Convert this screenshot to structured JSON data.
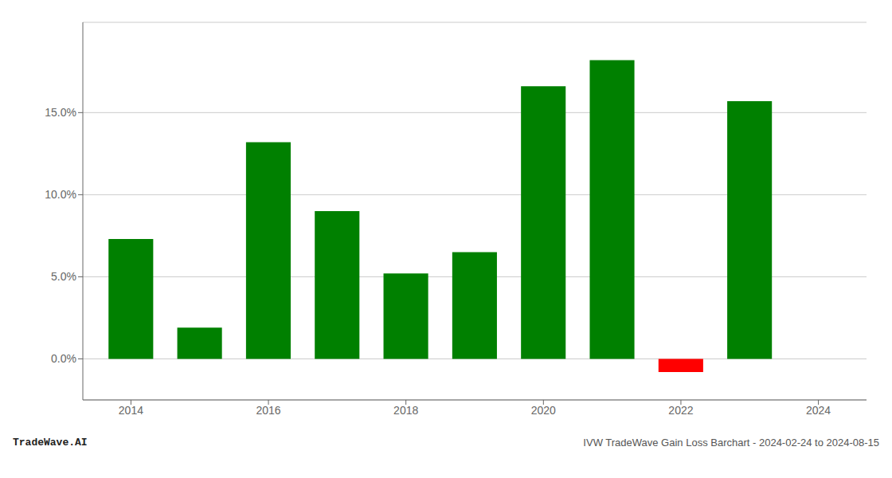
{
  "chart_data": {
    "type": "bar",
    "x": [
      2014,
      2015,
      2016,
      2017,
      2018,
      2019,
      2020,
      2021,
      2022,
      2023
    ],
    "values": [
      0.073,
      0.019,
      0.132,
      0.09,
      0.052,
      0.065,
      0.166,
      0.182,
      -0.008,
      0.157
    ],
    "colors": [
      "#008000",
      "#008000",
      "#008000",
      "#008000",
      "#008000",
      "#008000",
      "#008000",
      "#008000",
      "#ff0000",
      "#008000"
    ],
    "xlim": [
      2013.3,
      2024.7
    ],
    "xticks": [
      2014,
      2016,
      2018,
      2020,
      2022,
      2024
    ],
    "ylim": [
      -0.025,
      0.205
    ],
    "yticks": [
      {
        "value": 0.0,
        "label": "0.0%"
      },
      {
        "value": 0.05,
        "label": "5.0%"
      },
      {
        "value": 0.1,
        "label": "10.0%"
      },
      {
        "value": 0.15,
        "label": "15.0%"
      }
    ],
    "grid": true,
    "annotations": [
      "TradeWave.AI",
      "IVW TradeWave Gain Loss Barchart - 2024-02-24 to 2024-08-15"
    ]
  }
}
